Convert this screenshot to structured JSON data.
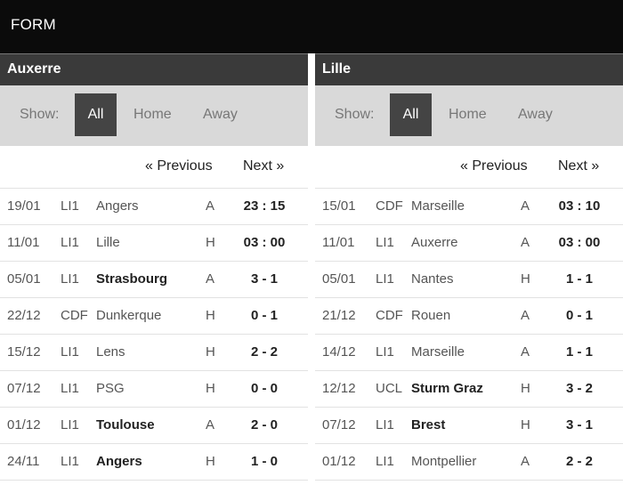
{
  "header": {
    "title": "FORM"
  },
  "left": {
    "team": "Auxerre",
    "filter": {
      "show_label": "Show:",
      "all": "All",
      "home": "Home",
      "away": "Away"
    },
    "pager": {
      "prev": "« Previous",
      "next": "Next »"
    },
    "matches": [
      {
        "date": "19/01",
        "comp": "LI1",
        "opponent": "Angers",
        "bold": false,
        "venue": "A",
        "score": "23 : 15"
      },
      {
        "date": "11/01",
        "comp": "LI1",
        "opponent": "Lille",
        "bold": false,
        "venue": "H",
        "score": "03 : 00"
      },
      {
        "date": "05/01",
        "comp": "LI1",
        "opponent": "Strasbourg",
        "bold": true,
        "venue": "A",
        "score": "3 - 1"
      },
      {
        "date": "22/12",
        "comp": "CDF",
        "opponent": "Dunkerque",
        "bold": false,
        "venue": "H",
        "score": "0 - 1"
      },
      {
        "date": "15/12",
        "comp": "LI1",
        "opponent": "Lens",
        "bold": false,
        "venue": "H",
        "score": "2 - 2"
      },
      {
        "date": "07/12",
        "comp": "LI1",
        "opponent": "PSG",
        "bold": false,
        "venue": "H",
        "score": "0 - 0"
      },
      {
        "date": "01/12",
        "comp": "LI1",
        "opponent": "Toulouse",
        "bold": true,
        "venue": "A",
        "score": "2 - 0"
      },
      {
        "date": "24/11",
        "comp": "LI1",
        "opponent": "Angers",
        "bold": true,
        "venue": "H",
        "score": "1 - 0"
      }
    ]
  },
  "right": {
    "team": "Lille",
    "filter": {
      "show_label": "Show:",
      "all": "All",
      "home": "Home",
      "away": "Away"
    },
    "pager": {
      "prev": "« Previous",
      "next": "Next »"
    },
    "matches": [
      {
        "date": "15/01",
        "comp": "CDF",
        "opponent": "Marseille",
        "bold": false,
        "venue": "A",
        "score": "03 : 10"
      },
      {
        "date": "11/01",
        "comp": "LI1",
        "opponent": "Auxerre",
        "bold": false,
        "venue": "A",
        "score": "03 : 00"
      },
      {
        "date": "05/01",
        "comp": "LI1",
        "opponent": "Nantes",
        "bold": false,
        "venue": "H",
        "score": "1 - 1"
      },
      {
        "date": "21/12",
        "comp": "CDF",
        "opponent": "Rouen",
        "bold": false,
        "venue": "A",
        "score": "0 - 1"
      },
      {
        "date": "14/12",
        "comp": "LI1",
        "opponent": "Marseille",
        "bold": false,
        "venue": "A",
        "score": "1 - 1"
      },
      {
        "date": "12/12",
        "comp": "UCL",
        "opponent": "Sturm Graz",
        "bold": true,
        "venue": "H",
        "score": "3 - 2"
      },
      {
        "date": "07/12",
        "comp": "LI1",
        "opponent": "Brest",
        "bold": true,
        "venue": "H",
        "score": "3 - 1"
      },
      {
        "date": "01/12",
        "comp": "LI1",
        "opponent": "Montpellier",
        "bold": false,
        "venue": "A",
        "score": "2 - 2"
      }
    ]
  }
}
